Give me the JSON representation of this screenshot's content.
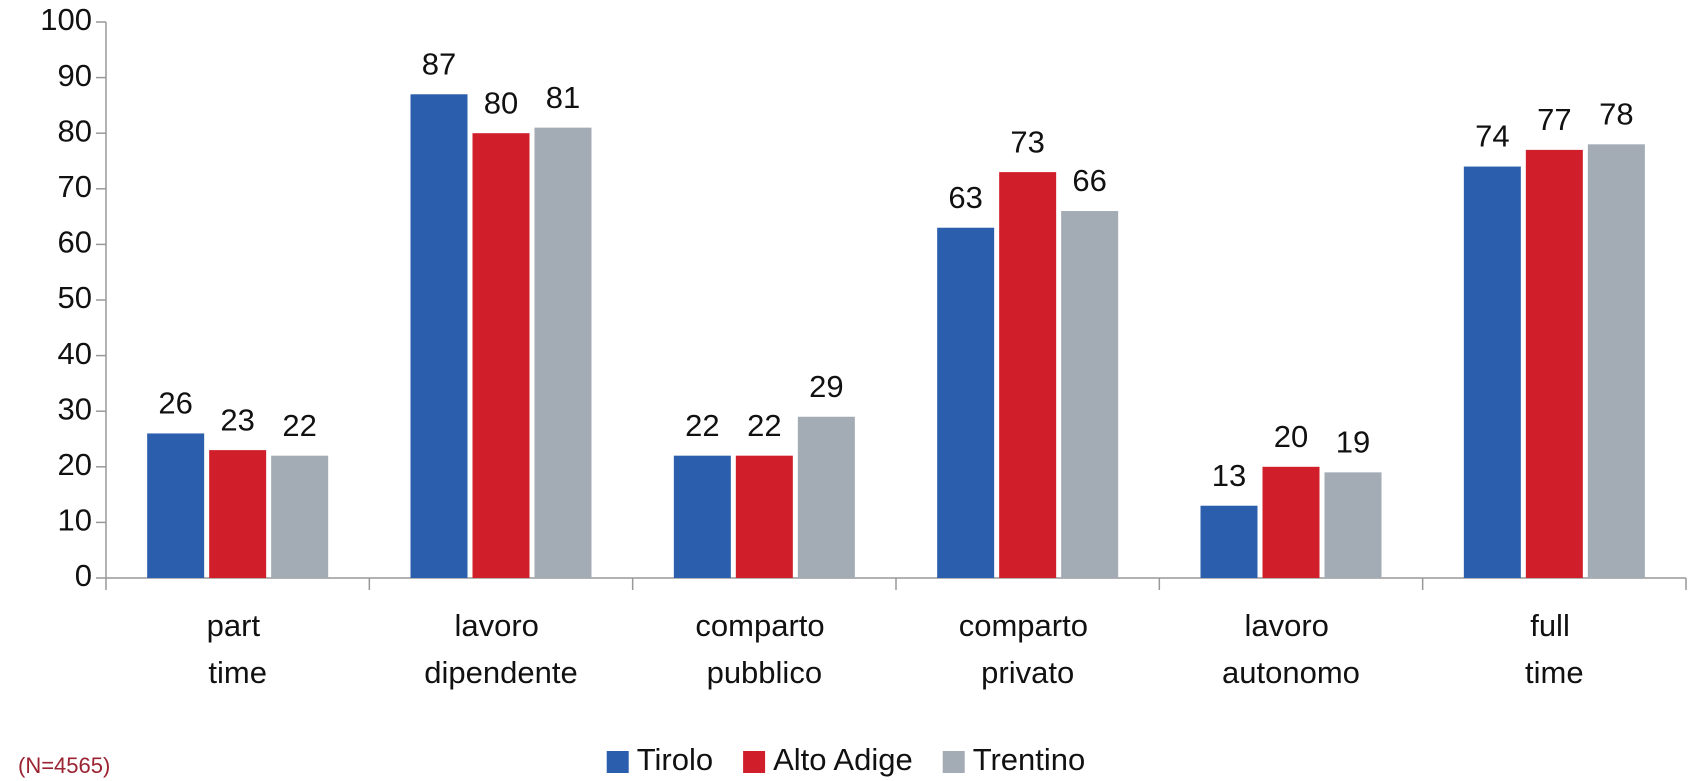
{
  "chart_data": {
    "type": "bar",
    "categories": [
      "part time",
      "lavoro dipendente",
      "comparto pubblico",
      "comparto privato",
      "lavoro autonomo",
      "full time"
    ],
    "series": [
      {
        "name": "Tirolo",
        "color": "#2b5fad",
        "values": [
          26,
          87,
          22,
          63,
          13,
          74
        ]
      },
      {
        "name": "Alto Adige",
        "color": "#d01f2a",
        "values": [
          23,
          80,
          22,
          73,
          20,
          77
        ]
      },
      {
        "name": "Trentino",
        "color": "#a3abb4",
        "values": [
          22,
          81,
          29,
          66,
          19,
          78
        ]
      }
    ],
    "ylim": [
      0,
      100
    ],
    "yticks": [
      0,
      10,
      20,
      30,
      40,
      50,
      60,
      70,
      80,
      90,
      100
    ],
    "grid": false,
    "legend": "bottom",
    "note": "(N=4565)"
  }
}
